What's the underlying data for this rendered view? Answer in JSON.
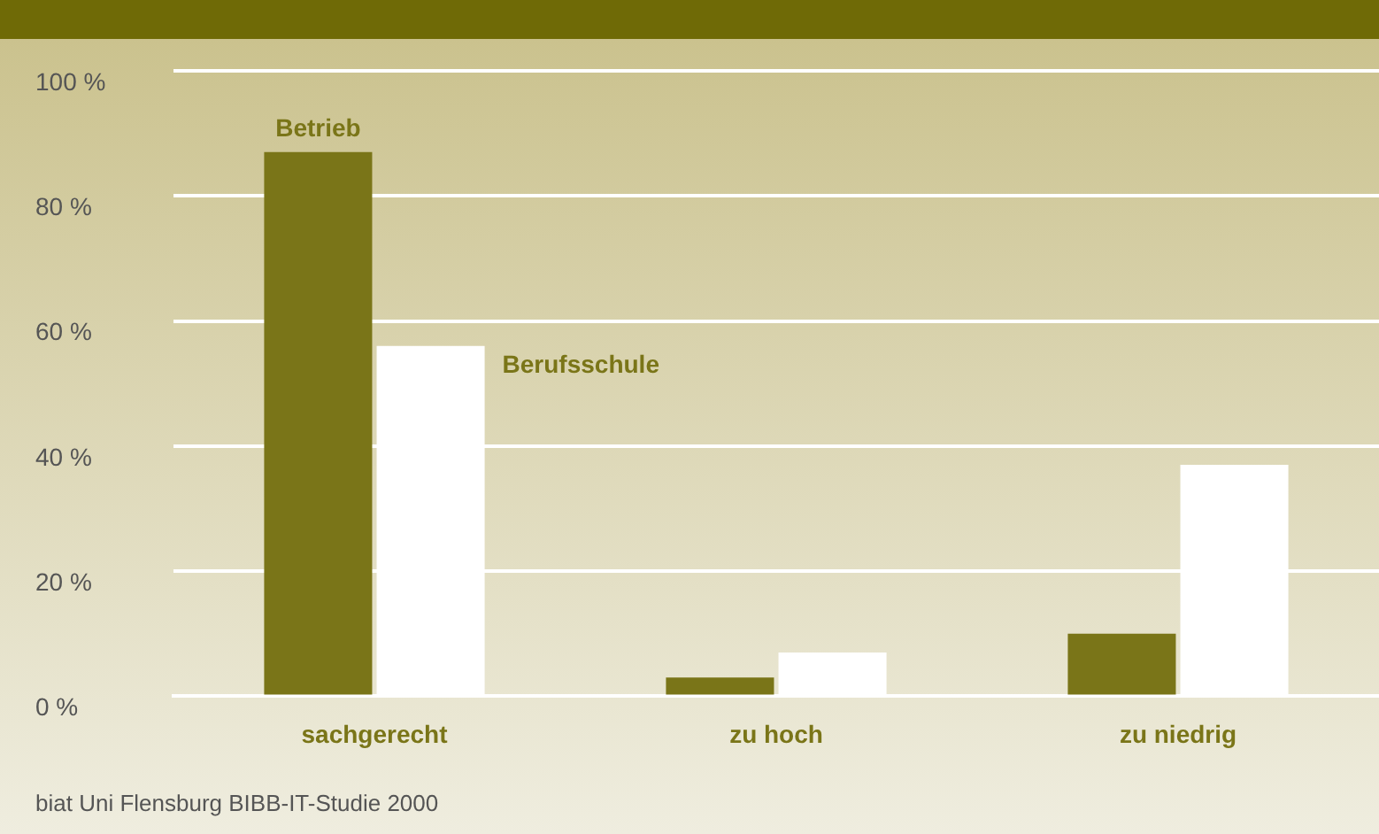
{
  "chart_data": {
    "type": "bar",
    "categories": [
      "sachgerecht",
      "zu hoch",
      "zu niedrig"
    ],
    "series": [
      {
        "name": "Betrieb",
        "color": "#7a7518",
        "values": [
          87,
          3,
          10
        ]
      },
      {
        "name": "Berufsschule",
        "color": "#ffffff",
        "values": [
          56,
          7,
          37
        ]
      }
    ],
    "ylim": [
      0,
      100
    ],
    "yticks": [
      {
        "value": 0,
        "label": "0 %"
      },
      {
        "value": 20,
        "label": "20 %"
      },
      {
        "value": 40,
        "label": "40 %"
      },
      {
        "value": 60,
        "label": "60 %"
      },
      {
        "value": 80,
        "label": "80 %"
      },
      {
        "value": 100,
        "label": "100 %"
      }
    ],
    "grid": "y",
    "legend": false,
    "annotations": [
      "biat Uni Flensburg BIBB-IT-Studie 2000"
    ]
  }
}
